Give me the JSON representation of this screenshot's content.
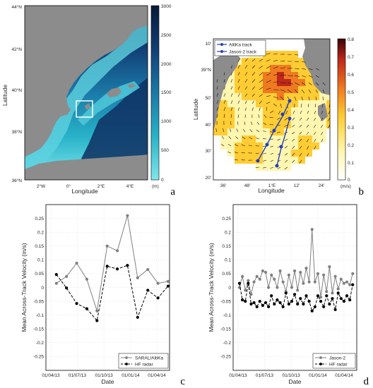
{
  "colors": {
    "land": "#8c8c8c",
    "grid": "#cccccc",
    "series_sat": "#808080",
    "series_hf": "#000000",
    "altika_track": "#1f3fbf",
    "jason_track": "#1f3fbf"
  },
  "panel_a": {
    "label": "a",
    "xlabel": "Longitude",
    "ylabel": "Latitude",
    "lat_ticks": [
      "44°N",
      "42°N",
      "40°N",
      "38°N",
      "36°N"
    ],
    "lon_ticks": [
      "2°W",
      "0°",
      "2°E",
      "4°E"
    ],
    "colorbar_ticks": [
      "3000",
      "2500",
      "2000",
      "1500",
      "1000",
      "500",
      "0"
    ],
    "colorbar_unit": "(m)"
  },
  "panel_b": {
    "label": "b",
    "xlabel": "Longitude",
    "ylabel": "Latitude",
    "lat_ticks": [
      "39°N",
      "50'",
      "40'",
      "30'",
      "20'"
    ],
    "lat_top_tick": "10'",
    "lon_ticks": [
      "36'",
      "48'",
      "1°E",
      "12'",
      "24'"
    ],
    "colorbar_ticks": [
      "0.8",
      "0.7",
      "0.6",
      "0.5",
      "0.4",
      "0.3",
      "0.2",
      "0.1",
      "0"
    ],
    "colorbar_unit": "(m/s)",
    "legend": [
      "AltiKa track",
      "Jason-2 track"
    ]
  },
  "chart_data": [
    {
      "id": "c",
      "label": "c",
      "type": "line",
      "title": "",
      "xlabel": "Date",
      "ylabel": "Mean Across-Track Velocity (m/s)",
      "xticks": [
        "01/04/13",
        "01/07/13",
        "01/10/13",
        "01/01/14",
        "01/04/14"
      ],
      "yticks": [
        "0.25",
        "0.2",
        "0.15",
        "0.1",
        "0.05",
        "0",
        "-0.05",
        "-0.1",
        "-0.15",
        "-0.2",
        "-0.25"
      ],
      "ylim": [
        -0.3,
        0.3
      ],
      "xlim": [
        "2013-03-15",
        "2014-05-15"
      ],
      "grid": true,
      "legend_position": "bottom-right",
      "series": [
        {
          "name": "SARAL/AltiKa",
          "style": "solid",
          "x": [
            "2013-04-20",
            "2013-05-25",
            "2013-06-29",
            "2013-08-03",
            "2013-09-07",
            "2013-10-12",
            "2013-11-16",
            "2013-12-21",
            "2014-01-25",
            "2014-03-01",
            "2014-04-05",
            "2014-05-10"
          ],
          "values": [
            0.015,
            0.04,
            0.088,
            0.03,
            -0.085,
            0.15,
            0.133,
            0.26,
            0.035,
            0.065,
            0.015,
            0.022
          ]
        },
        {
          "name": "HF radar",
          "style": "dashed",
          "x": [
            "2013-04-20",
            "2013-05-25",
            "2013-06-29",
            "2013-08-03",
            "2013-09-07",
            "2013-10-12",
            "2013-11-16",
            "2013-12-21",
            "2014-01-25",
            "2014-03-01",
            "2014-04-05",
            "2014-05-10"
          ],
          "values": [
            0.047,
            -0.002,
            -0.058,
            -0.077,
            -0.12,
            0.077,
            0.067,
            0.08,
            -0.108,
            -0.01,
            -0.038,
            0.005
          ]
        }
      ]
    },
    {
      "id": "d",
      "label": "d",
      "type": "line",
      "title": "",
      "xlabel": "Date",
      "ylabel": "Mean Across-Track Velocity (m/s)",
      "xticks": [
        "01/04/13",
        "01/07/13",
        "01/10/13",
        "01/01/14",
        "01/04/14"
      ],
      "yticks": [
        "0.25",
        "0.2",
        "0.15",
        "0.1",
        "0.05",
        "0",
        "-0.05",
        "-0.1",
        "-0.15",
        "-0.2",
        "-0.25"
      ],
      "ylim": [
        -0.3,
        0.3
      ],
      "xlim": [
        "2013-03-15",
        "2014-05-15"
      ],
      "grid": true,
      "legend_position": "bottom-right",
      "series": [
        {
          "name": "Jason-2",
          "style": "solid",
          "x": [
            "2013-04-06",
            "2013-04-16",
            "2013-04-26",
            "2013-05-06",
            "2013-05-16",
            "2013-05-26",
            "2013-06-05",
            "2013-06-15",
            "2013-06-25",
            "2013-07-05",
            "2013-07-15",
            "2013-07-25",
            "2013-08-04",
            "2013-08-14",
            "2013-08-24",
            "2013-09-03",
            "2013-09-13",
            "2013-09-23",
            "2013-10-03",
            "2013-10-13",
            "2013-10-23",
            "2013-11-02",
            "2013-11-12",
            "2013-11-22",
            "2013-12-02",
            "2013-12-12",
            "2013-12-22",
            "2014-01-01",
            "2014-01-11",
            "2014-01-21",
            "2014-01-31",
            "2014-02-10",
            "2014-02-20",
            "2014-03-02",
            "2014-03-12",
            "2014-03-22",
            "2014-04-01",
            "2014-04-11",
            "2014-04-21",
            "2014-05-01"
          ],
          "values": [
            0.0,
            0.04,
            -0.01,
            0.025,
            -0.025,
            0.02,
            0.04,
            0.03,
            0.06,
            0.055,
            0.0,
            0.045,
            0.03,
            0.0,
            0.06,
            0.02,
            -0.015,
            0.045,
            0.0,
            0.06,
            -0.01,
            0.055,
            0.015,
            0.07,
            0.02,
            0.21,
            0.02,
            0.05,
            -0.035,
            0.045,
            -0.015,
            0.075,
            -0.02,
            0.04,
            -0.005,
            0.03,
            0.015,
            0.02,
            0.01,
            0.05
          ]
        },
        {
          "name": "HF radar",
          "style": "dashed",
          "x": [
            "2013-04-06",
            "2013-04-16",
            "2013-04-26",
            "2013-05-06",
            "2013-05-16",
            "2013-05-26",
            "2013-06-05",
            "2013-06-15",
            "2013-06-25",
            "2013-07-05",
            "2013-07-15",
            "2013-07-25",
            "2013-08-04",
            "2013-08-14",
            "2013-08-24",
            "2013-09-03",
            "2013-09-13",
            "2013-09-23",
            "2013-10-03",
            "2013-10-13",
            "2013-10-23",
            "2013-11-02",
            "2013-11-12",
            "2013-11-22",
            "2013-12-02",
            "2013-12-12",
            "2013-12-22",
            "2014-01-01",
            "2014-01-11",
            "2014-01-21",
            "2014-01-31",
            "2014-02-10",
            "2014-02-20",
            "2014-03-02",
            "2014-03-12",
            "2014-03-22",
            "2014-04-01",
            "2014-04-11",
            "2014-04-21",
            "2014-05-01"
          ],
          "values": [
            0.015,
            -0.045,
            -0.05,
            0.015,
            -0.06,
            -0.055,
            -0.07,
            -0.05,
            -0.065,
            -0.055,
            -0.07,
            -0.03,
            -0.06,
            -0.045,
            -0.055,
            -0.07,
            -0.02,
            -0.06,
            -0.05,
            -0.025,
            -0.06,
            -0.04,
            -0.06,
            -0.03,
            -0.05,
            -0.085,
            -0.07,
            -0.03,
            -0.05,
            -0.07,
            -0.03,
            -0.06,
            -0.04,
            -0.08,
            -0.02,
            -0.04,
            -0.05,
            -0.03,
            -0.045,
            0.01
          ]
        }
      ]
    }
  ]
}
